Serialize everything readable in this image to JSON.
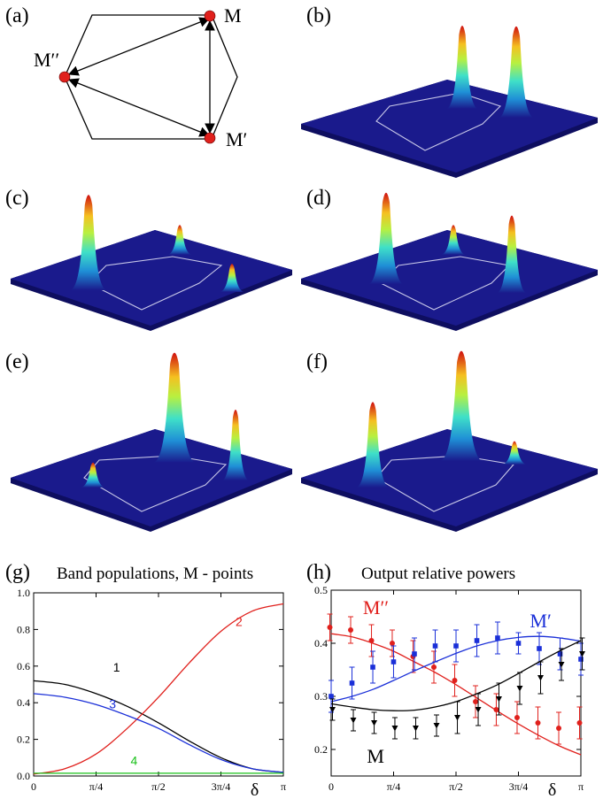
{
  "panels": {
    "a": {
      "label": "(a)",
      "nodes": [
        "M",
        "M′′",
        "M′"
      ]
    },
    "b": {
      "label": "(b)"
    },
    "c": {
      "label": "(c)"
    },
    "d": {
      "label": "(d)"
    },
    "e": {
      "label": "(e)"
    },
    "f": {
      "label": "(f)"
    },
    "g": {
      "label": "(g)",
      "title": "Band populations, M - points"
    },
    "h": {
      "label": "(h)",
      "title": "Output relative powers"
    }
  },
  "colors": {
    "peak_top": "#d01010",
    "surface": "#1a1a8c",
    "red": "#e0201c",
    "blue": "#1a2fd8",
    "green": "#18c018",
    "black": "#000000"
  },
  "chart_data": [
    {
      "type": "line",
      "panel": "g",
      "title": "Band populations, M - points",
      "xlabel": "δ",
      "ylabel": "",
      "xlim": [
        0,
        3.14159
      ],
      "ylim": [
        0,
        1.0
      ],
      "xticks": [
        0,
        0.7854,
        1.5708,
        2.3562,
        3.14159
      ],
      "xtick_labels": [
        "0",
        "π/4",
        "π/2",
        "3π/4",
        "π"
      ],
      "yticks": [
        0,
        0.2,
        0.4,
        0.6,
        0.8,
        1.0
      ],
      "ytick_labels": [
        "0.0",
        "0.2",
        "0.4",
        "0.6",
        "0.8",
        "1.0"
      ],
      "series": [
        {
          "name": "1",
          "color": "#000000",
          "x": [
            0,
            0.393,
            0.785,
            1.178,
            1.571,
            1.963,
            2.356,
            2.749,
            3.14159
          ],
          "y": [
            0.52,
            0.5,
            0.45,
            0.38,
            0.29,
            0.19,
            0.1,
            0.04,
            0.02
          ]
        },
        {
          "name": "2",
          "color": "#e0201c",
          "x": [
            0,
            0.393,
            0.785,
            1.178,
            1.571,
            1.963,
            2.356,
            2.749,
            3.14159
          ],
          "y": [
            0.01,
            0.04,
            0.12,
            0.26,
            0.43,
            0.62,
            0.79,
            0.9,
            0.94
          ]
        },
        {
          "name": "3",
          "color": "#1a2fd8",
          "x": [
            0,
            0.393,
            0.785,
            1.178,
            1.571,
            1.963,
            2.356,
            2.749,
            3.14159
          ],
          "y": [
            0.45,
            0.43,
            0.39,
            0.33,
            0.26,
            0.17,
            0.09,
            0.04,
            0.02
          ]
        },
        {
          "name": "4",
          "color": "#18c018",
          "x": [
            0,
            0.785,
            1.571,
            2.356,
            3.14159
          ],
          "y": [
            0.015,
            0.015,
            0.015,
            0.015,
            0.015
          ]
        }
      ]
    },
    {
      "type": "scatter",
      "panel": "h",
      "title": "Output relative powers",
      "xlabel": "δ",
      "ylabel": "",
      "xlim": [
        0,
        3.14159
      ],
      "ylim": [
        0.15,
        0.5
      ],
      "xticks": [
        0,
        0.7854,
        1.5708,
        2.3562,
        3.14159
      ],
      "xtick_labels": [
        "0",
        "π/4",
        "π/2",
        "3π/4",
        "π"
      ],
      "yticks": [
        0.2,
        0.3,
        0.4,
        0.5
      ],
      "ytick_labels": [
        "0.2",
        "0.3",
        "0.4",
        "0.5"
      ],
      "series": [
        {
          "name": "M′′",
          "color": "#e0201c",
          "marker": "circle",
          "x": [
            0,
            0.262,
            0.524,
            0.785,
            1.047,
            1.309,
            1.571,
            1.833,
            2.094,
            2.356,
            2.618,
            2.88,
            3.14159
          ],
          "y": [
            0.43,
            0.425,
            0.405,
            0.4,
            0.375,
            0.355,
            0.33,
            0.29,
            0.275,
            0.26,
            0.25,
            0.24,
            0.25
          ],
          "err": [
            0.025,
            0.025,
            0.03,
            0.025,
            0.03,
            0.03,
            0.03,
            0.03,
            0.03,
            0.03,
            0.03,
            0.03,
            0.03
          ],
          "fit_y": [
            0.418,
            0.412,
            0.4,
            0.385,
            0.365,
            0.345,
            0.322,
            0.297,
            0.272,
            0.248,
            0.226,
            0.206,
            0.19
          ]
        },
        {
          "name": "M′",
          "color": "#1a2fd8",
          "marker": "square",
          "x": [
            0,
            0.262,
            0.524,
            0.785,
            1.047,
            1.309,
            1.571,
            1.833,
            2.094,
            2.356,
            2.618,
            2.88,
            3.14159
          ],
          "y": [
            0.3,
            0.325,
            0.355,
            0.365,
            0.38,
            0.395,
            0.395,
            0.405,
            0.41,
            0.4,
            0.39,
            0.38,
            0.37
          ],
          "err": [
            0.03,
            0.03,
            0.03,
            0.03,
            0.03,
            0.03,
            0.03,
            0.03,
            0.03,
            0.02,
            0.03,
            0.03,
            0.03
          ],
          "fit_y": [
            0.29,
            0.3,
            0.313,
            0.33,
            0.348,
            0.365,
            0.381,
            0.395,
            0.405,
            0.411,
            0.413,
            0.41,
            0.404
          ]
        },
        {
          "name": "M",
          "color": "#000000",
          "marker": "triangle-down",
          "x": [
            0,
            0.262,
            0.524,
            0.785,
            1.047,
            1.309,
            1.571,
            1.833,
            2.094,
            2.356,
            2.618,
            2.88,
            3.14159
          ],
          "y": [
            0.275,
            0.255,
            0.25,
            0.24,
            0.24,
            0.245,
            0.26,
            0.275,
            0.295,
            0.315,
            0.335,
            0.36,
            0.38
          ],
          "err": [
            0.02,
            0.02,
            0.02,
            0.02,
            0.02,
            0.02,
            0.03,
            0.03,
            0.03,
            0.03,
            0.03,
            0.03,
            0.03
          ],
          "fit_y": [
            0.286,
            0.28,
            0.275,
            0.273,
            0.274,
            0.28,
            0.29,
            0.305,
            0.322,
            0.343,
            0.365,
            0.386,
            0.405
          ]
        }
      ]
    }
  ]
}
